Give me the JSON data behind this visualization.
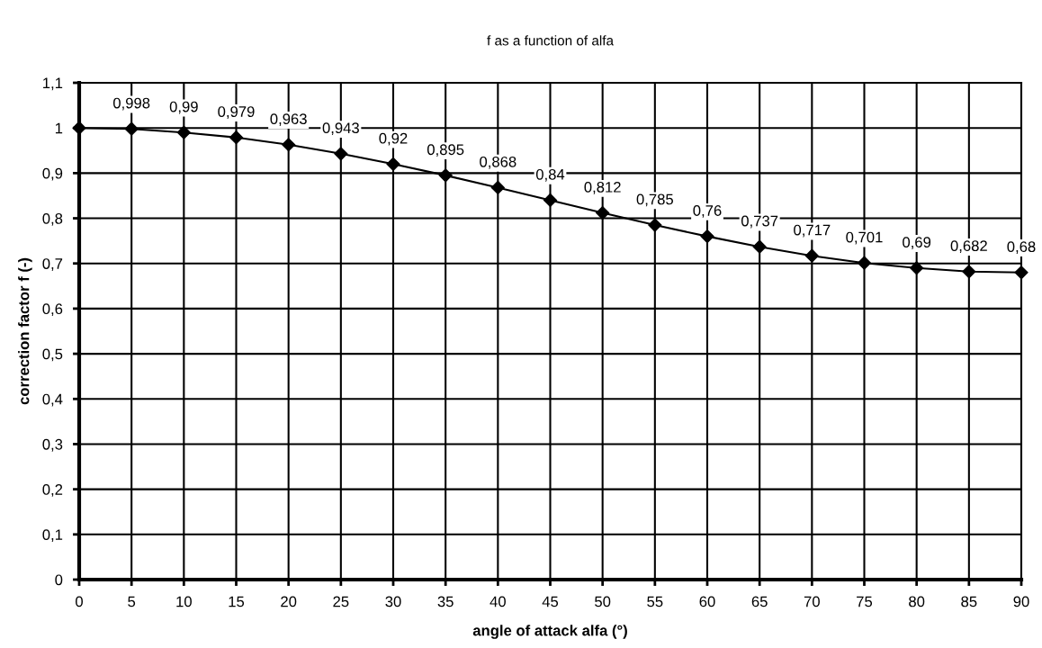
{
  "chart_data": {
    "type": "line",
    "title": "f as a function of alfa",
    "xlabel": "angle of attack alfa (°)",
    "ylabel": "correction factor f (-)",
    "x": [
      0,
      5,
      10,
      15,
      20,
      25,
      30,
      35,
      40,
      45,
      50,
      55,
      60,
      65,
      70,
      75,
      80,
      85,
      90
    ],
    "series": [
      {
        "color": "#000000",
        "values": [
          1,
          0.998,
          0.99,
          0.979,
          0.963,
          0.943,
          0.92,
          0.895,
          0.868,
          0.84,
          0.812,
          0.785,
          0.76,
          0.737,
          0.717,
          0.701,
          0.69,
          0.682,
          0.68
        ],
        "value_labels": [
          null,
          "0,998",
          "0,99",
          "0,979",
          "0,963",
          "0,943",
          "0,92",
          "0,895",
          "0,868",
          "0,84",
          "0,812",
          "0,785",
          "0,76",
          "0,737",
          "0,717",
          "0,701",
          "0,69",
          "0,682",
          "0,68"
        ]
      }
    ],
    "xlim": [
      0,
      90
    ],
    "xticks": [
      0,
      5,
      10,
      15,
      20,
      25,
      30,
      35,
      40,
      45,
      50,
      55,
      60,
      65,
      70,
      75,
      80,
      85,
      90
    ],
    "ylim": [
      0,
      1.1
    ],
    "yticks": [
      0,
      {
        "value": 0.1,
        "label": "0,1"
      },
      {
        "value": 0.2,
        "label": "0,2"
      },
      {
        "value": 0.3,
        "label": "0,3"
      },
      {
        "value": 0.4,
        "label": "0,4"
      },
      {
        "value": 0.5,
        "label": "0,5"
      },
      {
        "value": 0.6,
        "label": "0,6"
      },
      {
        "value": 0.7,
        "label": "0,7"
      },
      {
        "value": 0.8,
        "label": "0,8"
      },
      {
        "value": 0.9,
        "label": "0,9"
      },
      1,
      {
        "value": 1.1,
        "label": "1,1"
      }
    ],
    "grid": true,
    "marker": "diamond",
    "line_style": "solid"
  }
}
